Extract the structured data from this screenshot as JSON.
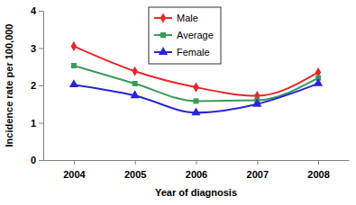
{
  "chart_data": {
    "type": "line",
    "x_label": "Year of diagnosis",
    "y_label": "Incidence rate per 100,000",
    "categories": [
      "2004",
      "2005",
      "2006",
      "2007",
      "2008"
    ],
    "series": [
      {
        "name": "Male",
        "color": "#e8262a",
        "marker": "diamond",
        "line_style": "solid",
        "values": [
          3.05,
          2.38,
          1.95,
          1.72,
          2.35
        ]
      },
      {
        "name": "Average",
        "color": "#3a9a5a",
        "marker": "square",
        "line_style": "solid",
        "values": [
          2.53,
          2.05,
          1.58,
          1.6,
          2.2
        ]
      },
      {
        "name": "Female",
        "color": "#2626d9",
        "marker": "triangle",
        "line_style": "solid",
        "values": [
          2.02,
          1.73,
          1.27,
          1.5,
          2.05
        ]
      }
    ],
    "ylim": [
      0,
      4
    ],
    "yticks": [
      0,
      1,
      2,
      3,
      4
    ],
    "grid": false,
    "legend": "top"
  }
}
